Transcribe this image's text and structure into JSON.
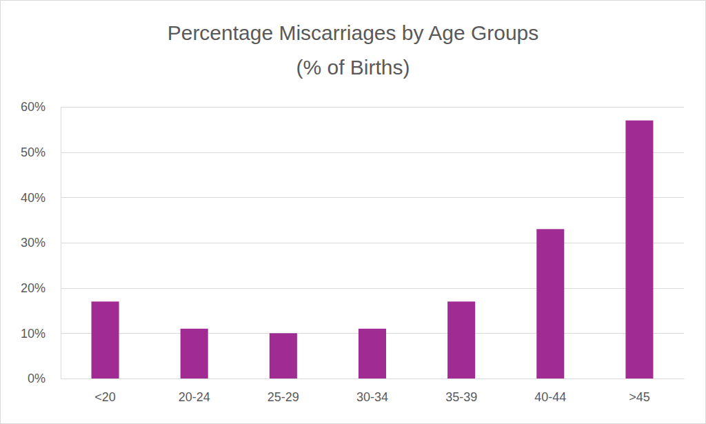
{
  "chart_data": {
    "type": "bar",
    "title": "Percentage Miscarriages by Age Groups",
    "subtitle": "(% of Births)",
    "categories": [
      "<20",
      "20-24",
      "25-29",
      "30-34",
      "35-39",
      "40-44",
      ">45"
    ],
    "values": [
      17,
      11,
      10,
      11,
      17,
      33,
      57
    ],
    "color": "#a02b93",
    "ylim": [
      0,
      60
    ],
    "yticks": [
      {
        "value": 0,
        "label": "0%"
      },
      {
        "value": 10,
        "label": "10%"
      },
      {
        "value": 20,
        "label": "20%"
      },
      {
        "value": 30,
        "label": "30%"
      },
      {
        "value": 40,
        "label": "40%"
      },
      {
        "value": 50,
        "label": "50%"
      },
      {
        "value": 60,
        "label": "60%"
      }
    ],
    "grid": true
  }
}
